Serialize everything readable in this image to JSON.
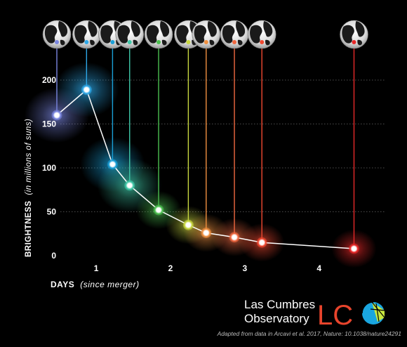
{
  "chart_data": {
    "type": "scatter",
    "xlabel": "DAYS",
    "xlabel_note": "(since merger)",
    "ylabel": "BRIGHTNESS",
    "ylabel_note": "(in millions of suns)",
    "xlim": [
      0.3,
      4.9
    ],
    "ylim": [
      0,
      200
    ],
    "x_ticks": [
      1,
      2,
      3,
      4
    ],
    "y_ticks": [
      0,
      50,
      100,
      150,
      200
    ],
    "grid": "horizontal dotted",
    "points": [
      {
        "x": 0.47,
        "y": 160,
        "color": "#7a86e0"
      },
      {
        "x": 0.87,
        "y": 189,
        "color": "#2ea8e8"
      },
      {
        "x": 1.22,
        "y": 104,
        "color": "#1aa0d8"
      },
      {
        "x": 1.45,
        "y": 80,
        "color": "#40c8a8"
      },
      {
        "x": 1.84,
        "y": 52,
        "color": "#4cc050"
      },
      {
        "x": 2.24,
        "y": 35,
        "color": "#c8d840"
      },
      {
        "x": 2.48,
        "y": 26,
        "color": "#f09040"
      },
      {
        "x": 2.86,
        "y": 21,
        "color": "#f06840"
      },
      {
        "x": 3.23,
        "y": 15,
        "color": "#f04830"
      },
      {
        "x": 4.47,
        "y": 8,
        "color": "#e82828"
      }
    ]
  },
  "logo": {
    "line1": "Las Cumbres",
    "line2": "Observatory",
    "mark": "LC",
    "colors": {
      "letters": "#e8442c",
      "globe": "#1aa6e0",
      "globe_band": "#c8e840"
    }
  },
  "credit": "Adapted from data in Arcavi et al. 2017, Nature: 10.1038/nature24291"
}
